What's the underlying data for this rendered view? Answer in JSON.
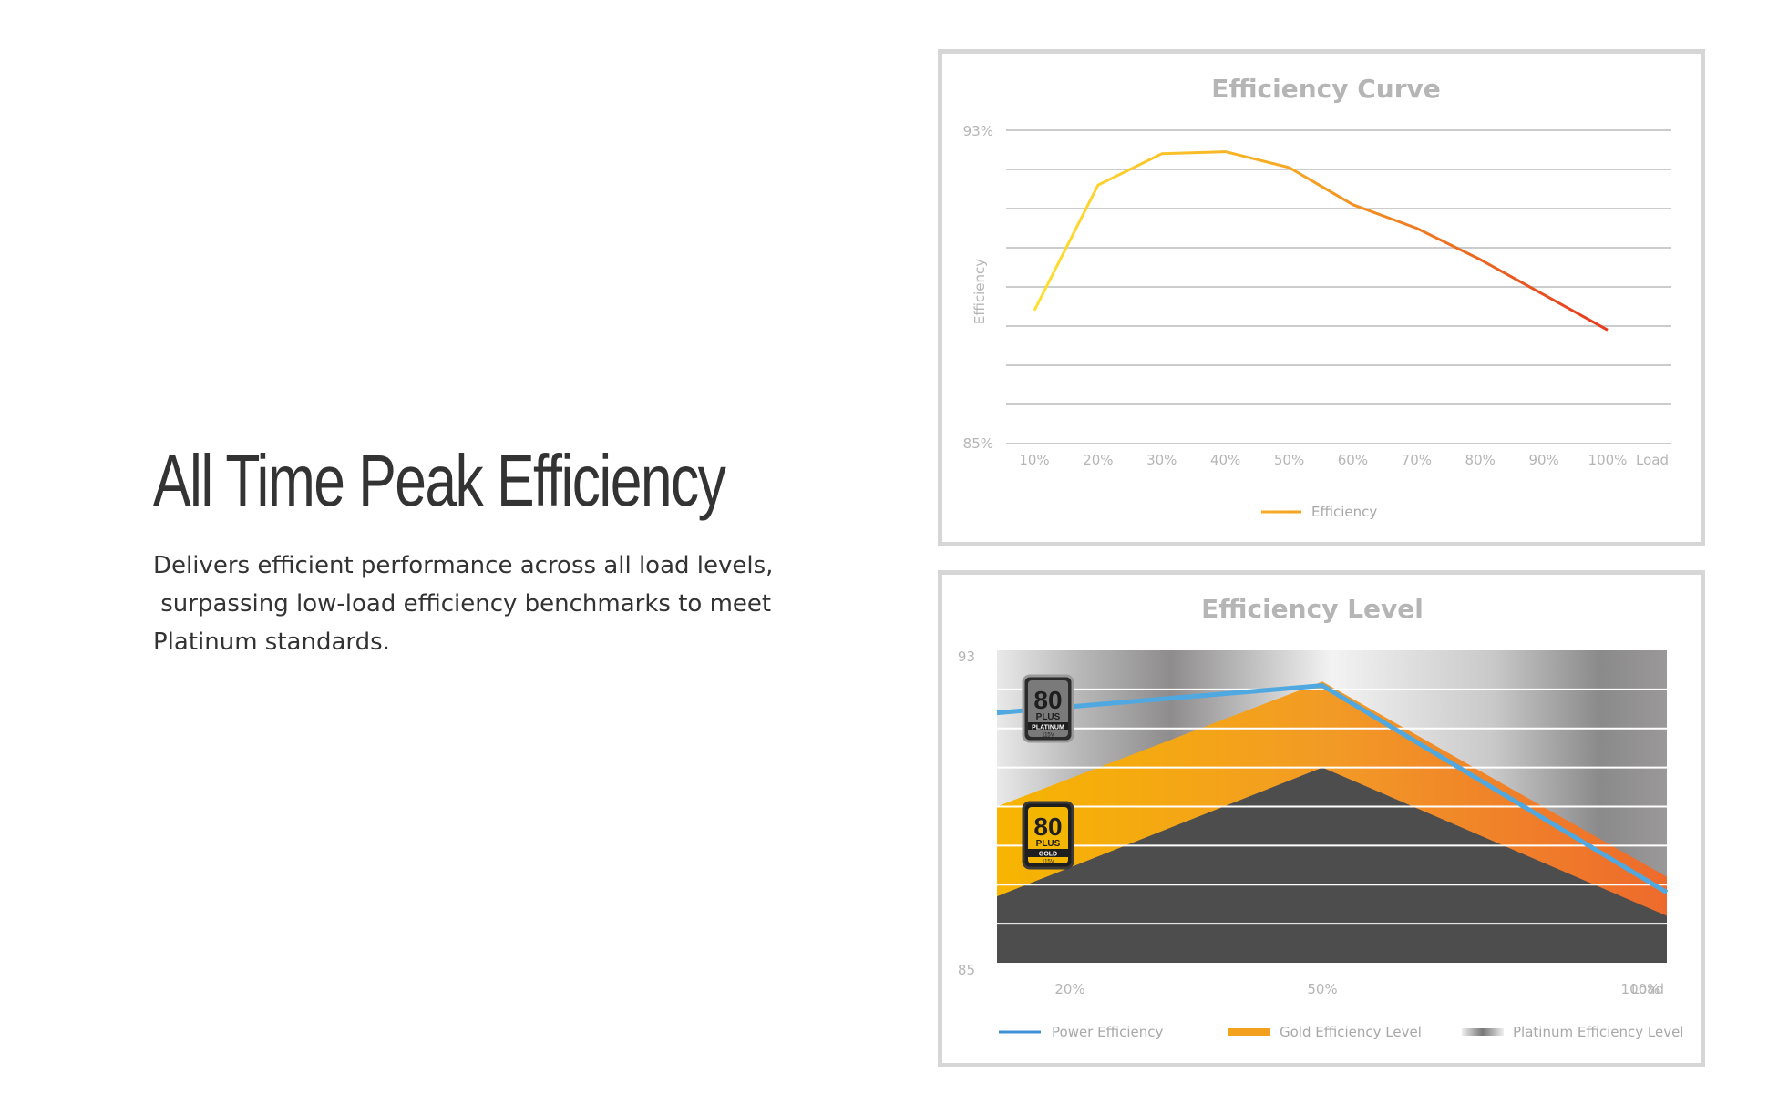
{
  "hero": {
    "title": "All Time Peak Efficiency",
    "description_lines": [
      "Delivers efficient performance across all load levels,",
      " surpassing low-load efficiency benchmarks to meet",
      "Platinum standards."
    ]
  },
  "chart_data": [
    {
      "type": "line",
      "title": "Efficiency Curve",
      "ylabel": "Efficiency",
      "xlabel": "Load",
      "ylim": [
        85,
        93
      ],
      "y_tick_labels": [
        "93%",
        "85%"
      ],
      "categories": [
        "10%",
        "20%",
        "30%",
        "40%",
        "50%",
        "60%",
        "70%",
        "80%",
        "90%",
        "100%"
      ],
      "series": [
        {
          "name": "Efficiency",
          "values": [
            88.4,
            91.6,
            92.4,
            92.45,
            92.05,
            91.1,
            90.5,
            89.7,
            88.8,
            87.9
          ]
        }
      ],
      "grid": true,
      "legend": "bottom-center",
      "colors": {
        "line_start": "#ffe030",
        "line_mid": "#f5a623",
        "line_end": "#e63a1f",
        "grid": "#cccccc"
      }
    },
    {
      "type": "area",
      "title": "Efficiency Level",
      "xlabel": "Load",
      "ylim": [
        85,
        93
      ],
      "y_tick_labels": [
        "93",
        "85"
      ],
      "categories": [
        "20%",
        "50%",
        "100%"
      ],
      "series": [
        {
          "name": "Power Efficiency",
          "values": [
            91.4,
            92.1,
            86.8
          ]
        },
        {
          "name": "Gold Efficiency Level",
          "values": [
            87.7,
            92.2,
            86.2
          ]
        },
        {
          "name": "Platinum Efficiency Level",
          "values": [
            88.0,
            90.0,
            87.0
          ]
        }
      ],
      "badges": [
        {
          "number": "80",
          "plus": "PLUS",
          "tier": "PLATINUM",
          "voltage": "115V"
        },
        {
          "number": "80",
          "plus": "PLUS",
          "tier": "GOLD",
          "voltage": "115V"
        }
      ],
      "grid": true,
      "legend": "bottom",
      "colors": {
        "power_line": "#4fa8e0",
        "gold_start": "#f7b500",
        "gold_end": "#ee6a2c",
        "platinum_dark": "#8e8c8d",
        "platinum_light": "#f2f2f2",
        "base_gray": "#4d4d4d"
      }
    }
  ]
}
